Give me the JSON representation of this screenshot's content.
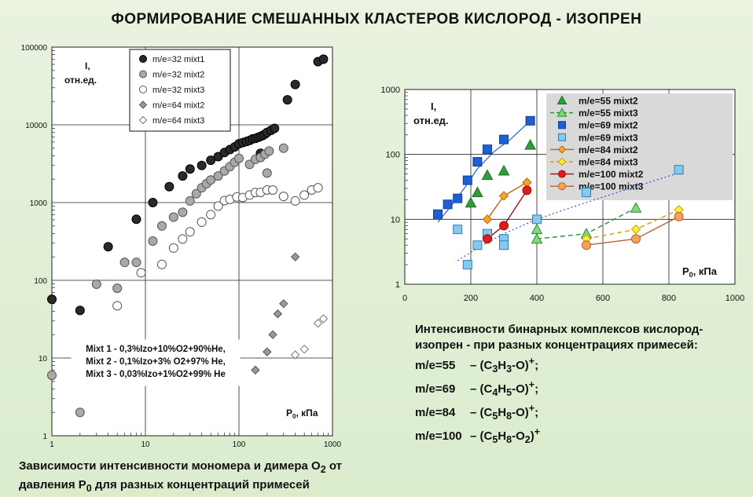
{
  "title": "ФОРМИРОВАНИЕ  СМЕШАННЫХ  КЛАСТЕРОВ  КИСЛОРОД - ИЗОПРЕН",
  "left_caption": [
    "Зависимости интенсивности мономера и димера O",
    "2",
    " от",
    "давления P",
    "0",
    " для разных концентраций примесей"
  ],
  "right_caption": {
    "lines": [
      "Интенсивности бинарных комплексов кислород-",
      "изопрен - при разных концентрациях примесей:"
    ],
    "items": [
      {
        "mz": "m/e=55",
        "formula": [
          "– (C",
          "3",
          "H",
          "3",
          "-O)",
          "+",
          ";"
        ]
      },
      {
        "mz": "m/e=69",
        "formula": [
          "– (C",
          "4",
          "H",
          "5",
          "-O)",
          "+",
          ";"
        ]
      },
      {
        "mz": "m/e=84",
        "formula": [
          "– (C",
          "5",
          "H",
          "8",
          "-O)",
          "+",
          ";"
        ]
      },
      {
        "mz": "m/e=100",
        "formula": [
          "– (C",
          "5",
          "H",
          "8",
          "-O",
          "2",
          ")",
          "+",
          ""
        ]
      }
    ]
  },
  "chart_data": [
    {
      "type": "scatter",
      "xscale": "log",
      "yscale": "log",
      "xlim": [
        1,
        1000
      ],
      "ylim": [
        1,
        100000
      ],
      "xticks": [
        "1",
        "10",
        "100",
        "1000"
      ],
      "yticks": [
        "1",
        "10",
        "100",
        "1000",
        "10000",
        "100000"
      ],
      "ylabel": [
        "I,",
        "отн.ед."
      ],
      "xlabel": [
        "P",
        "0",
        ", кПа"
      ],
      "legend_position": "top-center",
      "grid": true,
      "annotation": [
        "Mixt 1 - 0,3%Izo+10%O2+90%He,",
        "Mixt 2 - 0,1%Izo+3% O2+97% He,",
        "Mixt 3 - 0,03%Izo+1%O2+99% He"
      ],
      "series": [
        {
          "name": "m/e=32 mixt1",
          "marker": "circle",
          "fill": "#2a2a2a",
          "stroke": "#000000",
          "points": [
            [
              1,
              57
            ],
            [
              2,
              41
            ],
            [
              4,
              270
            ],
            [
              8,
              610
            ],
            [
              12,
              1000
            ],
            [
              18,
              1600
            ],
            [
              25,
              2200
            ],
            [
              30,
              2700
            ],
            [
              40,
              3000
            ],
            [
              50,
              3500
            ],
            [
              60,
              3900
            ],
            [
              70,
              4400
            ],
            [
              80,
              4800
            ],
            [
              90,
              5200
            ],
            [
              100,
              5700
            ],
            [
              110,
              5900
            ],
            [
              120,
              6100
            ],
            [
              130,
              6300
            ],
            [
              140,
              6600
            ],
            [
              150,
              6700
            ],
            [
              160,
              6900
            ],
            [
              170,
              7100
            ],
            [
              180,
              7300
            ],
            [
              190,
              7600
            ],
            [
              200,
              8000
            ],
            [
              220,
              8500
            ],
            [
              240,
              9000
            ],
            [
              330,
              21000
            ],
            [
              400,
              33000
            ],
            [
              700,
              65000
            ],
            [
              800,
              70000
            ],
            [
              170,
              4300
            ]
          ]
        },
        {
          "name": "m/e=32 mixt2",
          "marker": "circle",
          "fill": "#a9a9a9",
          "stroke": "#555555",
          "points": [
            [
              1,
              6
            ],
            [
              2,
              2
            ],
            [
              3,
              89
            ],
            [
              5,
              79
            ],
            [
              6,
              170
            ],
            [
              8,
              170
            ],
            [
              12,
              320
            ],
            [
              15,
              500
            ],
            [
              20,
              650
            ],
            [
              25,
              750
            ],
            [
              30,
              1050
            ],
            [
              35,
              1300
            ],
            [
              40,
              1550
            ],
            [
              45,
              1750
            ],
            [
              50,
              1950
            ],
            [
              60,
              2200
            ],
            [
              70,
              2550
            ],
            [
              80,
              2900
            ],
            [
              90,
              3300
            ],
            [
              100,
              3700
            ],
            [
              130,
              3100
            ],
            [
              150,
              3600
            ],
            [
              170,
              3800
            ],
            [
              190,
              4200
            ],
            [
              210,
              4600
            ],
            [
              300,
              5000
            ],
            [
              200,
              2400
            ]
          ]
        },
        {
          "name": "m/e=32 mixt3",
          "marker": "circle",
          "fill": "#ffffff",
          "stroke": "#555555",
          "points": [
            [
              5,
              47
            ],
            [
              9,
              125
            ],
            [
              15,
              160
            ],
            [
              20,
              260
            ],
            [
              25,
              340
            ],
            [
              30,
              420
            ],
            [
              40,
              560
            ],
            [
              50,
              700
            ],
            [
              60,
              900
            ],
            [
              70,
              1060
            ],
            [
              80,
              1100
            ],
            [
              95,
              1180
            ],
            [
              110,
              1160
            ],
            [
              130,
              1250
            ],
            [
              150,
              1350
            ],
            [
              170,
              1350
            ],
            [
              200,
              1450
            ],
            [
              230,
              1450
            ],
            [
              300,
              1200
            ],
            [
              400,
              1050
            ],
            [
              500,
              1250
            ],
            [
              600,
              1450
            ],
            [
              700,
              1550
            ]
          ]
        },
        {
          "name": "m/e=64 mixt2",
          "marker": "diamond",
          "fill": "#9a9a9a",
          "stroke": "#555555",
          "points": [
            [
              150,
              7
            ],
            [
              200,
              12
            ],
            [
              230,
              20
            ],
            [
              260,
              37
            ],
            [
              300,
              50
            ],
            [
              400,
              200
            ]
          ]
        },
        {
          "name": "m/e=64 mixt3",
          "marker": "diamond",
          "fill": "#ffffff",
          "stroke": "#777777",
          "points": [
            [
              400,
              11
            ],
            [
              500,
              13
            ],
            [
              700,
              28
            ],
            [
              800,
              32
            ]
          ]
        }
      ]
    },
    {
      "type": "scatter",
      "xscale": "linear",
      "yscale": "log",
      "xlim": [
        0,
        1000
      ],
      "ylim": [
        1,
        1000
      ],
      "xticks": [
        "0",
        "200",
        "400",
        "600",
        "800",
        "1000"
      ],
      "yticks": [
        "1",
        "10",
        "100",
        "1000"
      ],
      "ylabel": [
        "I,",
        "отн.ед."
      ],
      "xlabel": [
        "P",
        "0",
        ", кПа"
      ],
      "legend_position": "top-right",
      "grid": true,
      "series": [
        {
          "name": "m/e=55 mixt2",
          "marker": "triangle",
          "fill": "#2e9e3a",
          "stroke": "#1a6e22",
          "line": "none",
          "points": [
            [
              200,
              18
            ],
            [
              220,
              26
            ],
            [
              250,
              48
            ],
            [
              300,
              56
            ],
            [
              380,
              140
            ]
          ]
        },
        {
          "name": "m/e=55 mixt3",
          "marker": "triangle",
          "fill": "#7fd97a",
          "stroke": "#2e8a35",
          "line": "dash",
          "points": [
            [
              400,
              7
            ],
            [
              400,
              5
            ],
            [
              550,
              6
            ],
            [
              700,
              15
            ]
          ],
          "line_points": [
            [
              400,
              5
            ],
            [
              550,
              6
            ],
            [
              700,
              15
            ]
          ]
        },
        {
          "name": "m/e=69 mixt2",
          "marker": "square",
          "fill": "#1f5fd6",
          "stroke": "#12408f",
          "line": "none",
          "points": [
            [
              100,
              12
            ],
            [
              130,
              17
            ],
            [
              160,
              21
            ],
            [
              190,
              40
            ],
            [
              220,
              77
            ],
            [
              250,
              120
            ],
            [
              300,
              170
            ],
            [
              380,
              330
            ]
          ]
        },
        {
          "name": "m/e=69 mixt3",
          "marker": "square",
          "fill": "#87c8ee",
          "stroke": "#2d7fb5",
          "line": "none",
          "points": [
            [
              160,
              7
            ],
            [
              190,
              2
            ],
            [
              220,
              4
            ],
            [
              250,
              6
            ],
            [
              300,
              5
            ],
            [
              300,
              4
            ],
            [
              400,
              10
            ],
            [
              550,
              26
            ],
            [
              830,
              58
            ]
          ]
        },
        {
          "name": "m/e=84 mixt2",
          "marker": "diamond",
          "fill": "#f5a623",
          "stroke": "#b5661a",
          "line": "solid",
          "points": [
            [
              250,
              10
            ],
            [
              300,
              23
            ],
            [
              370,
              37
            ]
          ]
        },
        {
          "name": "m/e=84 mixt3",
          "marker": "diamond",
          "fill": "#ffee33",
          "stroke": "#c8a400",
          "line": "dash",
          "points": [
            [
              550,
              5
            ],
            [
              700,
              7
            ],
            [
              830,
              14
            ]
          ]
        },
        {
          "name": "m/e=100 mixt2",
          "marker": "circle",
          "fill": "#e01b1b",
          "stroke": "#9c1010",
          "line": "solid",
          "points": [
            [
              250,
              5
            ],
            [
              300,
              8
            ],
            [
              370,
              28
            ]
          ]
        },
        {
          "name": "m/e=100 mixt3",
          "marker": "circle",
          "fill": "#f5a25e",
          "stroke": "#b7602a",
          "line": "solid",
          "points": [
            [
              550,
              4
            ],
            [
              700,
              5
            ],
            [
              830,
              11
            ]
          ]
        }
      ],
      "fit_curves": [
        {
          "color": "#1f5fd6",
          "style": "solid",
          "points": [
            [
              100,
              9
            ],
            [
              140,
              16
            ],
            [
              180,
              30
            ],
            [
              220,
              60
            ],
            [
              270,
              110
            ],
            [
              320,
              170
            ],
            [
              380,
              330
            ]
          ]
        },
        {
          "color": "#1f5fd6",
          "style": "dot",
          "points": [
            [
              160,
              2.3
            ],
            [
              220,
              3.6
            ],
            [
              300,
              6
            ],
            [
              400,
              10
            ],
            [
              500,
              15
            ],
            [
              600,
              22
            ],
            [
              700,
              32
            ],
            [
              830,
              52
            ]
          ]
        }
      ]
    }
  ]
}
